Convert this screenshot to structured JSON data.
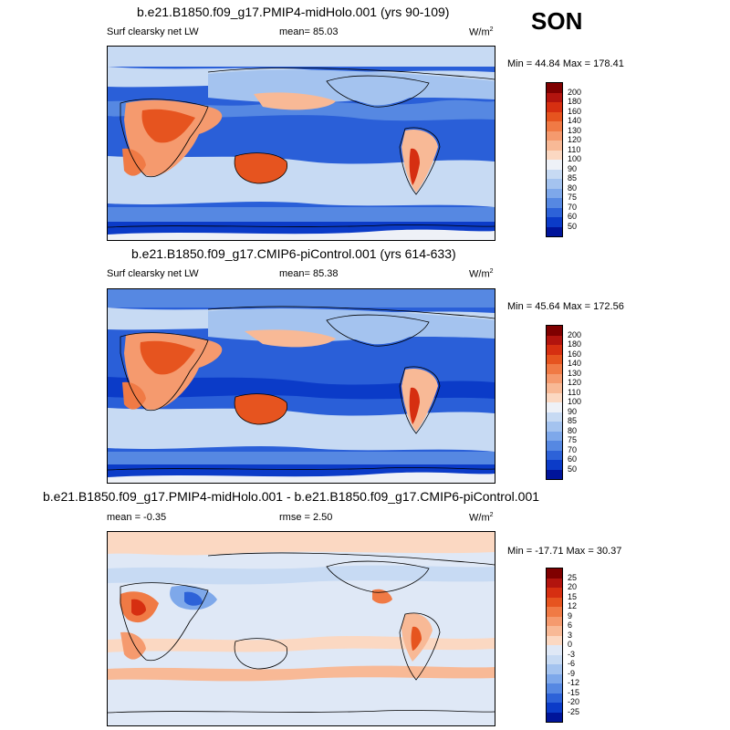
{
  "season": "SON",
  "panels": [
    {
      "title": "b.e21.B1850.f09_g17.PMIP4-midHolo.001 (yrs 90-109)",
      "left_label": "Surf clearsky net LW",
      "stat_text": "mean=  85.03",
      "units": "W/m",
      "units_sup": "2",
      "minmax": "Min = 44.84 Max = 178.41",
      "colorbar": {
        "labels": [
          "200",
          "180",
          "160",
          "140",
          "130",
          "120",
          "110",
          "100",
          "90",
          "85",
          "80",
          "75",
          "70",
          "60",
          "50"
        ],
        "colors": [
          "#7f0000",
          "#b2140e",
          "#d62f11",
          "#e6541f",
          "#f07a45",
          "#f59a6e",
          "#f8b996",
          "#fbd8c2",
          "#eef1f7",
          "#c7daf3",
          "#a4c3ef",
          "#7ea8ea",
          "#5688e2",
          "#2d62d8",
          "#0b3bc8",
          "#00149a"
        ]
      }
    },
    {
      "title": "b.e21.B1850.f09_g17.CMIP6-piControl.001 (yrs 614-633)",
      "left_label": "Surf clearsky net LW",
      "stat_text": "mean=  85.38",
      "units": "W/m",
      "units_sup": "2",
      "minmax": "Min = 45.64 Max = 172.56",
      "colorbar": {
        "labels": [
          "200",
          "180",
          "160",
          "140",
          "130",
          "120",
          "110",
          "100",
          "90",
          "85",
          "80",
          "75",
          "70",
          "60",
          "50"
        ],
        "colors": [
          "#7f0000",
          "#b2140e",
          "#d62f11",
          "#e6541f",
          "#f07a45",
          "#f59a6e",
          "#f8b996",
          "#fbd8c2",
          "#eef1f7",
          "#c7daf3",
          "#a4c3ef",
          "#7ea8ea",
          "#5688e2",
          "#2d62d8",
          "#0b3bc8",
          "#00149a"
        ]
      }
    },
    {
      "title": "b.e21.B1850.f09_g17.PMIP4-midHolo.001 - b.e21.B1850.f09_g17.CMIP6-piControl.001",
      "left_label": "mean =  -0.35",
      "stat_text": "rmse =   2.50",
      "units": "W/m",
      "units_sup": "2",
      "minmax": "Min = -17.71 Max =  30.37",
      "colorbar": {
        "labels": [
          "25",
          "20",
          "15",
          "12",
          "9",
          "6",
          "3",
          "0",
          "-3",
          "-6",
          "-9",
          "-12",
          "-15",
          "-20",
          "-25"
        ],
        "colors": [
          "#7f0000",
          "#b2140e",
          "#d62f11",
          "#e6541f",
          "#f07a45",
          "#f59a6e",
          "#f8b996",
          "#fbd8c2",
          "#dfe8f6",
          "#c7daf3",
          "#a4c3ef",
          "#7ea8ea",
          "#5688e2",
          "#2d62d8",
          "#0b3bc8",
          "#00149a"
        ]
      }
    }
  ],
  "chart_data": [
    {
      "type": "heatmap",
      "title": "b.e21.B1850.f09_g17.PMIP4-midHolo.001 (yrs 90-109)",
      "variable": "Surf clearsky net LW",
      "units": "W/m2",
      "mean": 85.03,
      "min": 44.84,
      "max": 178.41,
      "contour_levels": [
        50,
        60,
        70,
        75,
        80,
        85,
        90,
        100,
        110,
        120,
        130,
        140,
        160,
        180,
        200
      ]
    },
    {
      "type": "heatmap",
      "title": "b.e21.B1850.f09_g17.CMIP6-piControl.001 (yrs 614-633)",
      "variable": "Surf clearsky net LW",
      "units": "W/m2",
      "mean": 85.38,
      "min": 45.64,
      "max": 172.56,
      "contour_levels": [
        50,
        60,
        70,
        75,
        80,
        85,
        90,
        100,
        110,
        120,
        130,
        140,
        160,
        180,
        200
      ]
    },
    {
      "type": "heatmap",
      "title": "b.e21.B1850.f09_g17.PMIP4-midHolo.001 - b.e21.B1850.f09_g17.CMIP6-piControl.001",
      "units": "W/m2",
      "mean": -0.35,
      "rmse": 2.5,
      "min": -17.71,
      "max": 30.37,
      "contour_levels": [
        -25,
        -20,
        -15,
        -12,
        -9,
        -6,
        -3,
        0,
        3,
        6,
        9,
        12,
        15,
        20,
        25
      ]
    }
  ]
}
